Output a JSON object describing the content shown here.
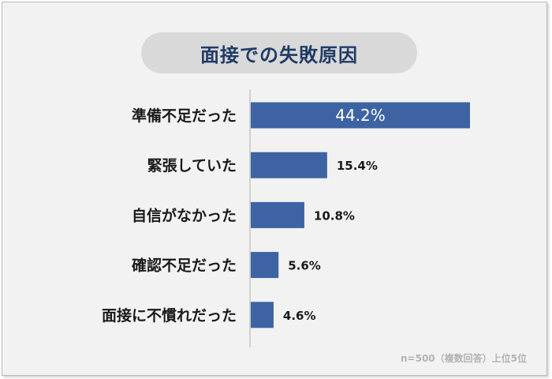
{
  "chart_data": {
    "type": "bar",
    "orientation": "horizontal",
    "title": "面接での失敗原因",
    "categories": [
      "準備不足だった",
      "緊張していた",
      "自信がなかった",
      "確認不足だった",
      "面接に不慣れだった"
    ],
    "values": [
      44.2,
      15.4,
      10.8,
      5.6,
      4.6
    ],
    "value_labels": [
      "44.2%",
      "15.4%",
      "10.8%",
      "5.6%",
      "4.6%"
    ],
    "unit": "%",
    "xlim": [
      0,
      50
    ],
    "grid": false,
    "legend": "none",
    "bar_color": "#3d63a3",
    "footnote": "n=500（複数回答）上位5位"
  },
  "colors": {
    "bar": "#3d63a3",
    "title_text": "#1f3b66",
    "title_bg": "#d9d9d9",
    "background": "#f2f2f2"
  }
}
